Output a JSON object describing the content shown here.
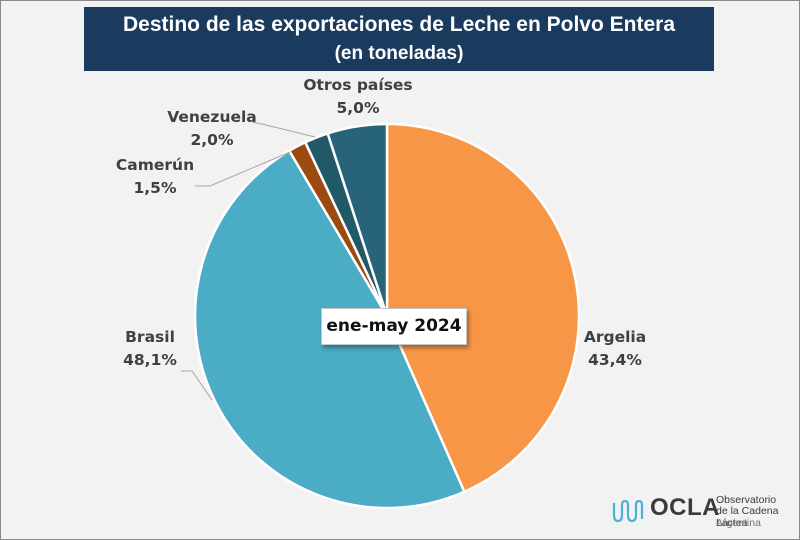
{
  "title": "Destino de las exportaciones de Leche en Polvo Entera",
  "subtitle": "(en toneladas)",
  "period_label": "ene-may 2024",
  "logo": {
    "name": "OCLA",
    "line1": "Observatorio",
    "line2": "de la Cadena Láctea",
    "line3": "Argentina"
  },
  "chart_data": {
    "type": "pie",
    "title": "Destino de las exportaciones de Leche en Polvo Entera (en toneladas)",
    "subtitle": "ene-may 2024",
    "start_angle_deg": 0,
    "direction": "clockwise",
    "slices": [
      {
        "label": "Argelia",
        "value": 43.4,
        "display": "43,4%",
        "color": "#f79646"
      },
      {
        "label": "Brasil",
        "value": 48.1,
        "display": "48,1%",
        "color": "#4bacc6"
      },
      {
        "label": "Camerún",
        "value": 1.5,
        "display": "1,5%",
        "color": "#9c4a10"
      },
      {
        "label": "Venezuela",
        "value": 2.0,
        "display": "2,0%",
        "color": "#215968"
      },
      {
        "label": "Otros países",
        "value": 5.0,
        "display": "5,0%",
        "color": "#286479"
      }
    ]
  }
}
